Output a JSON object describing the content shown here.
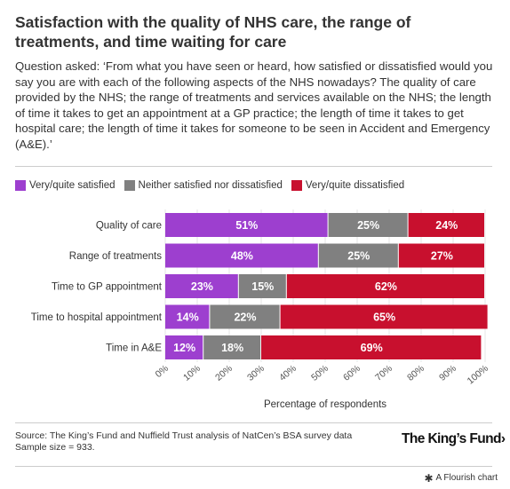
{
  "header": {
    "title": "Satisfaction with the quality of NHS care, the range of treatments, and time waiting for care",
    "subtitle": "Question asked: ‘From what you have seen or heard, how satisfied or dissatisfied would you say you are with each of the following aspects of the NHS nowadays? The quality of care provided by the NHS; the range of treatments and services available on the NHS; the length of time it takes to get an appointment at a GP practice; the length of time it takes to get hospital care; the length of time it takes for someone to be seen in Accident and Emergency (A&E).’"
  },
  "legend": [
    {
      "label": "Very/quite satisfied",
      "color": "#9d3fcf"
    },
    {
      "label": "Neither satisfied nor dissatisfied",
      "color": "#808080"
    },
    {
      "label": "Very/quite dissatisfied",
      "color": "#c8102e"
    }
  ],
  "chart_data": {
    "type": "bar",
    "orientation": "horizontal",
    "stacked": true,
    "categories": [
      "Quality of care",
      "Range of treatments",
      "Time to GP appointment",
      "Time to hospital appointment",
      "Time in A&E"
    ],
    "series": [
      {
        "name": "Very/quite satisfied",
        "values": [
          51,
          48,
          23,
          14,
          12
        ],
        "color": "#9d3fcf"
      },
      {
        "name": "Neither satisfied nor dissatisfied",
        "values": [
          25,
          25,
          15,
          22,
          18
        ],
        "color": "#808080"
      },
      {
        "name": "Very/quite dissatisfied",
        "values": [
          24,
          27,
          62,
          65,
          69
        ],
        "color": "#c8102e"
      }
    ],
    "data_labels": [
      [
        "51%",
        "48%",
        "23%",
        "14%",
        "12%"
      ],
      [
        "25%",
        "25%",
        "15%",
        "22%",
        "18%"
      ],
      [
        "24%",
        "27%",
        "62%",
        "65%",
        "69%"
      ]
    ],
    "xticks": [
      "0%",
      "10%",
      "20%",
      "30%",
      "40%",
      "50%",
      "60%",
      "70%",
      "80%",
      "90%",
      "100%"
    ],
    "xlim": [
      0,
      100
    ],
    "xlabel": "Percentage of respondents",
    "ylabel": "",
    "grid": true,
    "legend_position": "top-left"
  },
  "footer": {
    "source": "Source: The King’s Fund and Nuffield Trust analysis of NatCen’s BSA survey data",
    "sample": "Sample size = 933.",
    "logo": "The King’s Fund",
    "logo_arrow": "›",
    "credit": "A Flourish chart",
    "credit_icon": "star-icon"
  }
}
